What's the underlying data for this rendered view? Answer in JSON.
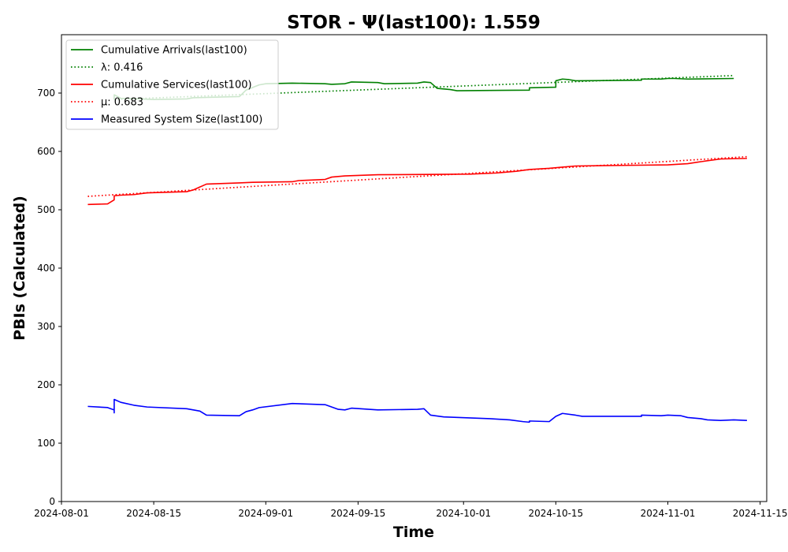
{
  "chart_data": {
    "type": "line",
    "title": "STOR -  Ψ(last100): 1.559",
    "xlabel": "Time",
    "ylabel": "PBIs (Calculated)",
    "xlim": [
      "2024-08-01",
      "2024-11-16"
    ],
    "ylim": [
      0,
      800
    ],
    "x_ticks": [
      "2024-08-01",
      "2024-08-15",
      "2024-09-01",
      "2024-09-15",
      "2024-10-01",
      "2024-10-15",
      "2024-11-01",
      "2024-11-15"
    ],
    "y_ticks": [
      0,
      100,
      200,
      300,
      400,
      500,
      600,
      700
    ],
    "grid": false,
    "legend_position": "top-left",
    "series": [
      {
        "name": "Cumulative Arrivals(last100)",
        "color": "#008000",
        "style": "solid",
        "points": [
          [
            "2024-08-09",
            689
          ],
          [
            "2024-08-09",
            695
          ],
          [
            "2024-08-09",
            697
          ],
          [
            "2024-08-10",
            691
          ],
          [
            "2024-08-13",
            690
          ],
          [
            "2024-08-15",
            689
          ],
          [
            "2024-08-20",
            690
          ],
          [
            "2024-08-21",
            692
          ],
          [
            "2024-08-28",
            694
          ],
          [
            "2024-08-29",
            705
          ],
          [
            "2024-08-31",
            714
          ],
          [
            "2024-09-01",
            716
          ],
          [
            "2024-09-05",
            717
          ],
          [
            "2024-09-10",
            716
          ],
          [
            "2024-09-11",
            715
          ],
          [
            "2024-09-13",
            716
          ],
          [
            "2024-09-14",
            719
          ],
          [
            "2024-09-18",
            718
          ],
          [
            "2024-09-19",
            716
          ],
          [
            "2024-09-24",
            717
          ],
          [
            "2024-09-25",
            719
          ],
          [
            "2024-09-26",
            718
          ],
          [
            "2024-09-27",
            708
          ],
          [
            "2024-09-29",
            706
          ],
          [
            "2024-09-30",
            704
          ],
          [
            "2024-10-11",
            705
          ],
          [
            "2024-10-11",
            709
          ],
          [
            "2024-10-15",
            710
          ],
          [
            "2024-10-15",
            721
          ],
          [
            "2024-10-16",
            724
          ],
          [
            "2024-10-17",
            723
          ],
          [
            "2024-10-18",
            721
          ],
          [
            "2024-10-28",
            722
          ],
          [
            "2024-10-28",
            724
          ],
          [
            "2024-10-31",
            724
          ],
          [
            "2024-11-01",
            725
          ],
          [
            "2024-11-02",
            725
          ],
          [
            "2024-11-04",
            724
          ],
          [
            "2024-11-11",
            725
          ]
        ]
      },
      {
        "name": "λ: 0.416",
        "color": "#008000",
        "style": "dotted",
        "points": [
          [
            "2024-08-09",
            689
          ],
          [
            "2024-11-11",
            730
          ]
        ]
      },
      {
        "name": "Cumulative Services(last100)",
        "color": "#ff0000",
        "style": "solid",
        "points": [
          [
            "2024-08-05",
            509
          ],
          [
            "2024-08-08",
            510
          ],
          [
            "2024-08-09",
            517
          ],
          [
            "2024-08-09",
            524
          ],
          [
            "2024-08-10",
            525
          ],
          [
            "2024-08-12",
            526
          ],
          [
            "2024-08-14",
            529
          ],
          [
            "2024-08-20",
            531
          ],
          [
            "2024-08-21",
            534
          ],
          [
            "2024-08-22",
            539
          ],
          [
            "2024-08-23",
            544
          ],
          [
            "2024-08-28",
            546
          ],
          [
            "2024-08-30",
            547
          ],
          [
            "2024-09-05",
            548
          ],
          [
            "2024-09-06",
            550
          ],
          [
            "2024-09-10",
            552
          ],
          [
            "2024-09-11",
            556
          ],
          [
            "2024-09-13",
            558
          ],
          [
            "2024-09-18",
            560
          ],
          [
            "2024-10-02",
            561
          ],
          [
            "2024-10-06",
            563
          ],
          [
            "2024-10-09",
            566
          ],
          [
            "2024-10-11",
            569
          ],
          [
            "2024-10-14",
            571
          ],
          [
            "2024-10-16",
            573
          ],
          [
            "2024-10-18",
            575
          ],
          [
            "2024-10-25",
            576
          ],
          [
            "2024-11-01",
            577
          ],
          [
            "2024-11-04",
            579
          ],
          [
            "2024-11-07",
            584
          ],
          [
            "2024-11-09",
            587
          ],
          [
            "2024-11-13",
            588
          ]
        ]
      },
      {
        "name": "μ: 0.683",
        "color": "#ff0000",
        "style": "dotted",
        "points": [
          [
            "2024-08-05",
            523
          ],
          [
            "2024-11-13",
            591
          ]
        ]
      },
      {
        "name": "Measured System Size(last100)",
        "color": "#0000ff",
        "style": "solid",
        "points": [
          [
            "2024-08-05",
            163
          ],
          [
            "2024-08-08",
            161
          ],
          [
            "2024-08-09",
            157
          ],
          [
            "2024-08-09",
            152
          ],
          [
            "2024-08-09",
            172
          ],
          [
            "2024-08-09",
            175
          ],
          [
            "2024-08-10",
            170
          ],
          [
            "2024-08-12",
            165
          ],
          [
            "2024-08-14",
            162
          ],
          [
            "2024-08-20",
            159
          ],
          [
            "2024-08-21",
            157
          ],
          [
            "2024-08-22",
            155
          ],
          [
            "2024-08-23",
            148
          ],
          [
            "2024-08-28",
            147
          ],
          [
            "2024-08-29",
            154
          ],
          [
            "2024-08-30",
            157
          ],
          [
            "2024-08-31",
            161
          ],
          [
            "2024-09-05",
            168
          ],
          [
            "2024-09-10",
            166
          ],
          [
            "2024-09-11",
            162
          ],
          [
            "2024-09-12",
            158
          ],
          [
            "2024-09-13",
            157
          ],
          [
            "2024-09-14",
            160
          ],
          [
            "2024-09-18",
            157
          ],
          [
            "2024-09-24",
            158
          ],
          [
            "2024-09-25",
            159
          ],
          [
            "2024-09-26",
            148
          ],
          [
            "2024-09-28",
            145
          ],
          [
            "2024-10-05",
            142
          ],
          [
            "2024-10-08",
            140
          ],
          [
            "2024-10-10",
            137
          ],
          [
            "2024-10-11",
            136
          ],
          [
            "2024-10-11",
            138
          ],
          [
            "2024-10-14",
            137
          ],
          [
            "2024-10-15",
            146
          ],
          [
            "2024-10-16",
            151
          ],
          [
            "2024-10-18",
            148
          ],
          [
            "2024-10-19",
            146
          ],
          [
            "2024-10-28",
            146
          ],
          [
            "2024-10-28",
            148
          ],
          [
            "2024-10-31",
            147
          ],
          [
            "2024-11-01",
            148
          ],
          [
            "2024-11-03",
            147
          ],
          [
            "2024-11-04",
            144
          ],
          [
            "2024-11-06",
            142
          ],
          [
            "2024-11-07",
            140
          ],
          [
            "2024-11-09",
            139
          ],
          [
            "2024-11-11",
            140
          ],
          [
            "2024-11-13",
            139
          ]
        ]
      }
    ]
  }
}
